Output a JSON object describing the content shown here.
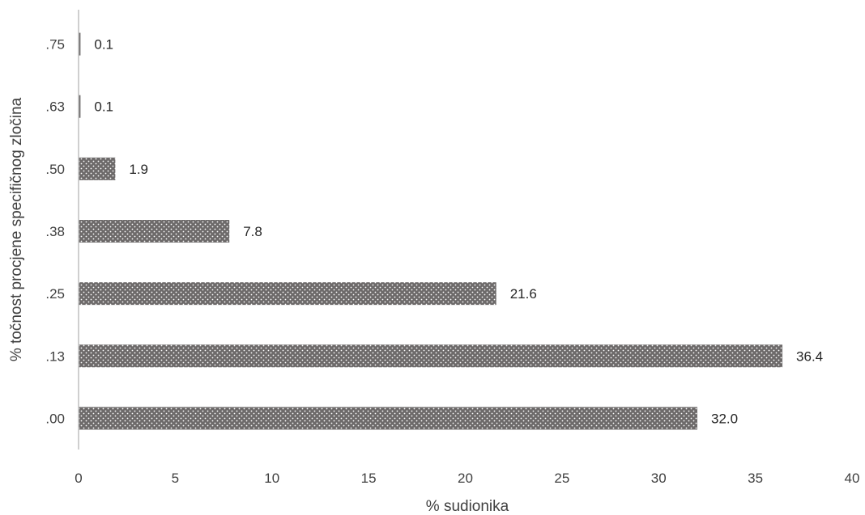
{
  "chart_data": {
    "type": "bar",
    "orientation": "horizontal",
    "title": "",
    "xlabel": "% sudionika",
    "ylabel": "% točnost procjene specifičnog zločina",
    "categories": [
      ".00",
      ".13",
      ".25",
      ".38",
      ".50",
      ".63",
      ".75"
    ],
    "values": [
      32.0,
      36.4,
      21.6,
      7.8,
      1.9,
      0.1,
      0.1
    ],
    "data_labels": [
      "32.0",
      "36.4",
      "21.6",
      "7.8",
      "1.9",
      "0.1",
      "0.1"
    ],
    "xlim": [
      0,
      40
    ],
    "x_ticks": [
      0,
      5,
      10,
      15,
      20,
      25,
      30,
      35,
      40
    ],
    "grid": false,
    "legend": "none",
    "bar_pattern": "dotted",
    "colors": {
      "bar_fill": "#6d6a6a",
      "bar_dot": "#ffffff",
      "axis_line": "#bfbfbf",
      "tick_text": "#404040",
      "label_text": "#262626"
    }
  }
}
